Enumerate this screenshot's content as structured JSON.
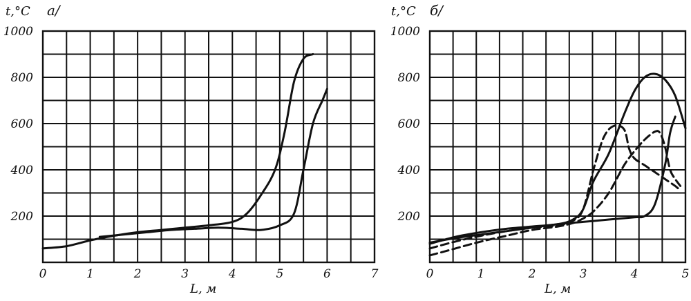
{
  "chart_data": [
    {
      "type": "line",
      "panel_label": "a/",
      "ylabel": "t,°C",
      "xlabel": "L, м",
      "xlim": [
        0,
        7
      ],
      "ylim": [
        0,
        1000
      ],
      "x_ticks": [
        "0",
        "1",
        "2",
        "3",
        "4",
        "5",
        "6",
        "7"
      ],
      "y_ticks": [
        "200",
        "400",
        "600",
        "800",
        "1000"
      ],
      "grid": true,
      "series": [
        {
          "style": "solid",
          "x": [
            0,
            0.5,
            1,
            1.5,
            2,
            2.5,
            3,
            3.5,
            4,
            4.3,
            4.6,
            4.9,
            5.1,
            5.3,
            5.5,
            5.7
          ],
          "y": [
            60,
            70,
            95,
            115,
            130,
            140,
            150,
            160,
            175,
            210,
            290,
            400,
            560,
            780,
            880,
            900
          ]
        },
        {
          "style": "solid",
          "x": [
            1.2,
            1.7,
            2.2,
            2.7,
            3.2,
            3.7,
            4.2,
            4.6,
            5.0,
            5.3,
            5.5,
            5.7,
            5.9,
            6.0
          ],
          "y": [
            110,
            120,
            130,
            140,
            145,
            150,
            145,
            140,
            160,
            210,
            400,
            600,
            700,
            750
          ]
        }
      ]
    },
    {
      "type": "line",
      "panel_label": "б/",
      "ylabel": "t,°C",
      "xlabel": "L, м",
      "xlim": [
        0,
        5
      ],
      "ylim": [
        0,
        1000
      ],
      "x_ticks": [
        "0",
        "1",
        "2",
        "3",
        "4",
        "5"
      ],
      "y_ticks": [
        "200",
        "400",
        "600",
        "800",
        "1000"
      ],
      "grid": true,
      "series": [
        {
          "style": "solid",
          "x": [
            0,
            0.5,
            1,
            1.5,
            2,
            2.5,
            2.8,
            3.0,
            3.2,
            3.5,
            3.8,
            4.0,
            4.2,
            4.4,
            4.6,
            4.8,
            5.0
          ],
          "y": [
            80,
            110,
            130,
            145,
            155,
            165,
            185,
            230,
            350,
            470,
            640,
            740,
            800,
            815,
            790,
            720,
            580
          ]
        },
        {
          "style": "solid",
          "x": [
            0,
            0.5,
            1,
            1.5,
            2,
            2.5,
            3.0,
            3.5,
            4.0,
            4.2,
            4.4,
            4.6,
            4.7,
            4.8
          ],
          "y": [
            85,
            105,
            120,
            135,
            150,
            165,
            175,
            185,
            195,
            200,
            250,
            420,
            560,
            630
          ]
        },
        {
          "style": "dashed",
          "x": [
            0,
            0.5,
            1,
            1.5,
            2,
            2.5,
            2.8,
            3.0,
            3.2,
            3.4,
            3.6,
            3.8,
            3.9,
            4.0,
            4.2,
            4.4,
            4.6,
            4.8,
            4.9
          ],
          "y": [
            60,
            90,
            115,
            135,
            150,
            160,
            180,
            230,
            400,
            540,
            590,
            575,
            490,
            450,
            420,
            390,
            360,
            330,
            310
          ]
        },
        {
          "style": "dashed",
          "x": [
            0,
            0.5,
            1,
            1.5,
            2,
            2.5,
            2.8,
            3.0,
            3.2,
            3.5,
            3.8,
            4.0,
            4.2,
            4.4,
            4.5,
            4.6,
            4.7,
            4.8,
            4.9
          ],
          "y": [
            30,
            60,
            90,
            115,
            140,
            155,
            170,
            190,
            220,
            300,
            420,
            480,
            530,
            565,
            560,
            500,
            400,
            360,
            330
          ]
        }
      ]
    }
  ]
}
